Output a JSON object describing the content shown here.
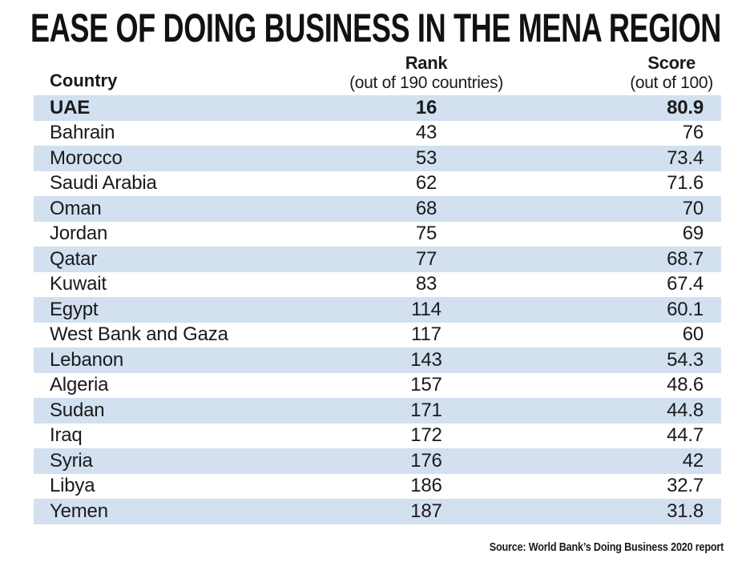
{
  "title": "EASE OF DOING BUSINESS IN THE MENA REGION",
  "header": {
    "country": "Country",
    "rank_title": "Rank",
    "rank_subtitle": "(out of 190 countries)",
    "score_title": "Score",
    "score_subtitle": "(out of 100)"
  },
  "source": "Source: World Bank’s Doing Business 2020 report",
  "colors": {
    "row_stripe": "#d2e0ef",
    "text": "#1a1a1e",
    "background": "#ffffff"
  },
  "chart_data": {
    "type": "table",
    "title": "EASE OF DOING BUSINESS IN THE MENA REGION",
    "columns": [
      "Country",
      "Rank (out of 190 countries)",
      "Score (out of 100)"
    ],
    "rank_out_of": 190,
    "score_out_of": 100,
    "highlighted_row": "UAE",
    "source": "Source: World Bank’s Doing Business 2020 report",
    "rows": [
      {
        "country": "UAE",
        "rank": 16,
        "score": 80.9,
        "bold": true
      },
      {
        "country": "Bahrain",
        "rank": 43,
        "score": 76,
        "bold": false
      },
      {
        "country": "Morocco",
        "rank": 53,
        "score": 73.4,
        "bold": false
      },
      {
        "country": "Saudi Arabia",
        "rank": 62,
        "score": 71.6,
        "bold": false
      },
      {
        "country": "Oman",
        "rank": 68,
        "score": 70,
        "bold": false
      },
      {
        "country": "Jordan",
        "rank": 75,
        "score": 69,
        "bold": false
      },
      {
        "country": "Qatar",
        "rank": 77,
        "score": 68.7,
        "bold": false
      },
      {
        "country": "Kuwait",
        "rank": 83,
        "score": 67.4,
        "bold": false
      },
      {
        "country": "Egypt",
        "rank": 114,
        "score": 60.1,
        "bold": false
      },
      {
        "country": "West Bank and Gaza",
        "rank": 117,
        "score": 60,
        "bold": false
      },
      {
        "country": "Lebanon",
        "rank": 143,
        "score": 54.3,
        "bold": false
      },
      {
        "country": "Algeria",
        "rank": 157,
        "score": 48.6,
        "bold": false
      },
      {
        "country": "Sudan",
        "rank": 171,
        "score": 44.8,
        "bold": false
      },
      {
        "country": "Iraq",
        "rank": 172,
        "score": 44.7,
        "bold": false
      },
      {
        "country": "Syria",
        "rank": 176,
        "score": 42,
        "bold": false
      },
      {
        "country": "Libya",
        "rank": 186,
        "score": 32.7,
        "bold": false
      },
      {
        "country": "Yemen",
        "rank": 187,
        "score": 31.8,
        "bold": false
      }
    ]
  }
}
